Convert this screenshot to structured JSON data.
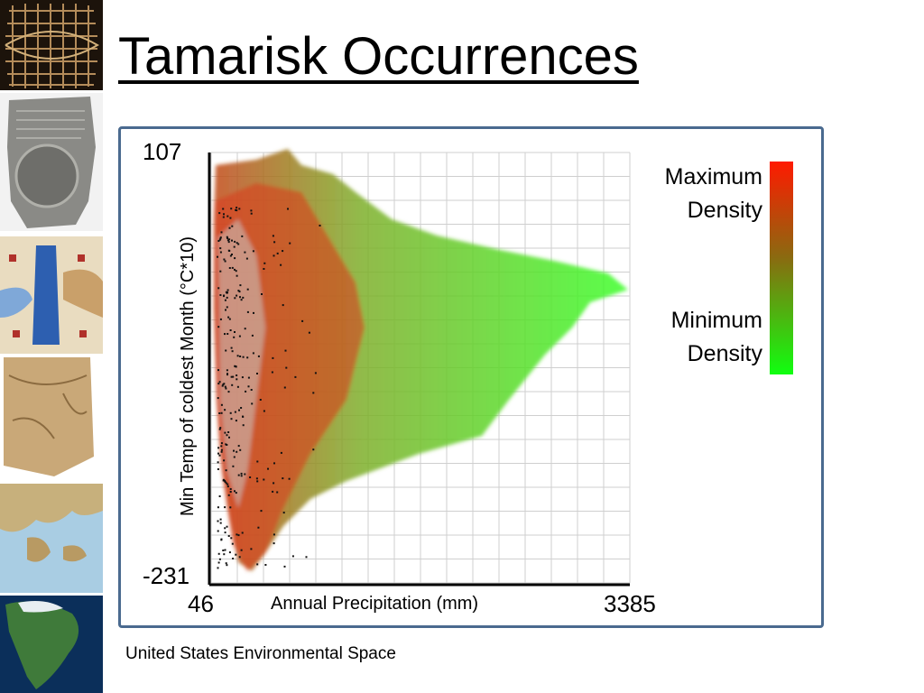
{
  "slide": {
    "title": "Tamarisk Occurrences",
    "caption": "United States Environmental Space"
  },
  "thumbnails": [
    {
      "name": "grid-map-thumbnail"
    },
    {
      "name": "clay-tablet-map-thumbnail"
    },
    {
      "name": "medieval-map-thumbnail"
    },
    {
      "name": "parchment-map-thumbnail"
    },
    {
      "name": "greece-relief-map-thumbnail"
    },
    {
      "name": "north-america-satellite-thumbnail"
    }
  ],
  "colors": {
    "frame_border": "#4a6a8f",
    "max_density": "#ff1a00",
    "min_density": "#10ff10",
    "occurrence_point": "#111111",
    "grid": "#cfcfcf"
  },
  "chart_data": {
    "type": "scatter",
    "title": "",
    "xlabel": "Annual Precipitation (mm)",
    "ylabel": "Min Temp of coldest Month (°C*10)",
    "xlim": [
      46,
      3385
    ],
    "ylim": [
      -231,
      107
    ],
    "x_tick_labels": [
      "46",
      "3385"
    ],
    "y_tick_labels": [
      "107",
      "-231"
    ],
    "grid": true,
    "legend": {
      "placement": "right",
      "type": "color-gradient",
      "max_label": "Maximum Density",
      "min_label": "Minimum Density",
      "max_label_lines": [
        "Maximum",
        "Density"
      ],
      "min_label_lines": [
        "Minimum",
        "Density"
      ]
    }
  }
}
